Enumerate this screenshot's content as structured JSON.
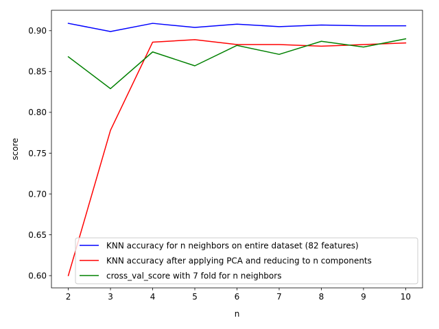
{
  "chart_data": {
    "type": "line",
    "xlabel": "n",
    "ylabel": "score",
    "x": [
      2,
      3,
      4,
      5,
      6,
      7,
      8,
      9,
      10
    ],
    "xlim": [
      1.6,
      10.4
    ],
    "ylim": [
      0.585,
      0.925
    ],
    "xticks": [
      2,
      3,
      4,
      5,
      6,
      7,
      8,
      9,
      10
    ],
    "yticks": [
      0.6,
      0.65,
      0.7,
      0.75,
      0.8,
      0.85,
      0.9
    ],
    "ytick_labels": [
      "0.60",
      "0.65",
      "0.70",
      "0.75",
      "0.80",
      "0.85",
      "0.90"
    ],
    "grid": false,
    "legend_position": "lower-right",
    "series": [
      {
        "name": "KNN accuracy for n neighbors on entire dataset (82 features)",
        "color": "#0000ff",
        "values": [
          0.909,
          0.899,
          0.909,
          0.904,
          0.908,
          0.905,
          0.907,
          0.906,
          0.906
        ]
      },
      {
        "name": "KNN accuracy after applying PCA and reducing to n components",
        "color": "#ff0000",
        "values": [
          0.6,
          0.778,
          0.886,
          0.889,
          0.883,
          0.883,
          0.881,
          0.883,
          0.885
        ]
      },
      {
        "name": "cross_val_score with 7 fold for n neighbors",
        "color": "#008000",
        "values": [
          0.868,
          0.829,
          0.874,
          0.857,
          0.882,
          0.871,
          0.887,
          0.88,
          0.89
        ]
      }
    ]
  }
}
